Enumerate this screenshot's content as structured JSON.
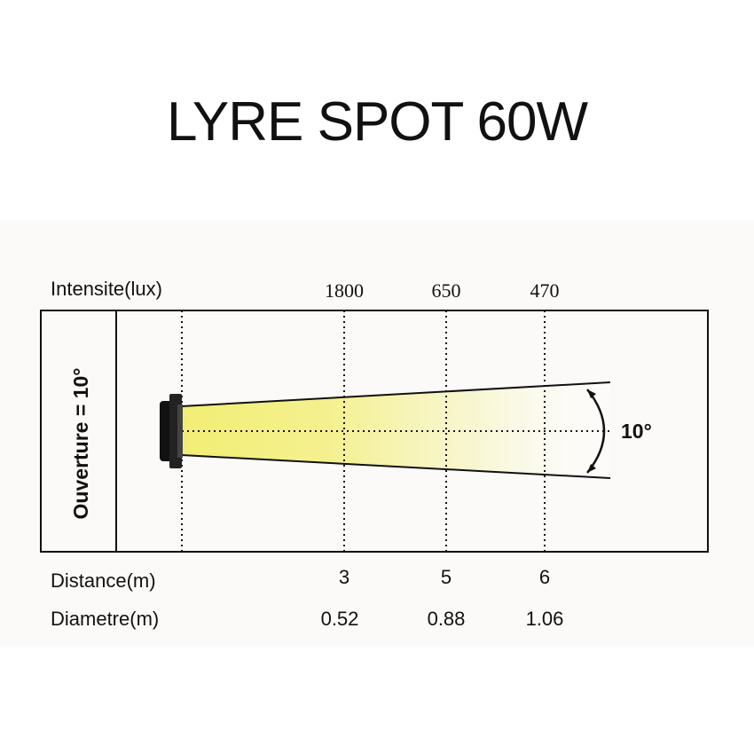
{
  "title": "LYRE SPOT 60W",
  "intensity_label": "Intensite(lux)",
  "distance_label": "Distance(m)",
  "diameter_label": "Diametre(m)",
  "aperture_label": "Ouverture = 10°",
  "beam_angle_label": "10°",
  "measurements": [
    {
      "intensity": "1800",
      "distance": "3",
      "diameter": "0.52"
    },
    {
      "intensity": "650",
      "distance": "5",
      "diameter": "0.88"
    },
    {
      "intensity": "470",
      "distance": "6",
      "diameter": "1.06"
    }
  ],
  "colors": {
    "beam": "#f3ef7a",
    "line": "#111111",
    "panel": "#fbfaf8"
  }
}
